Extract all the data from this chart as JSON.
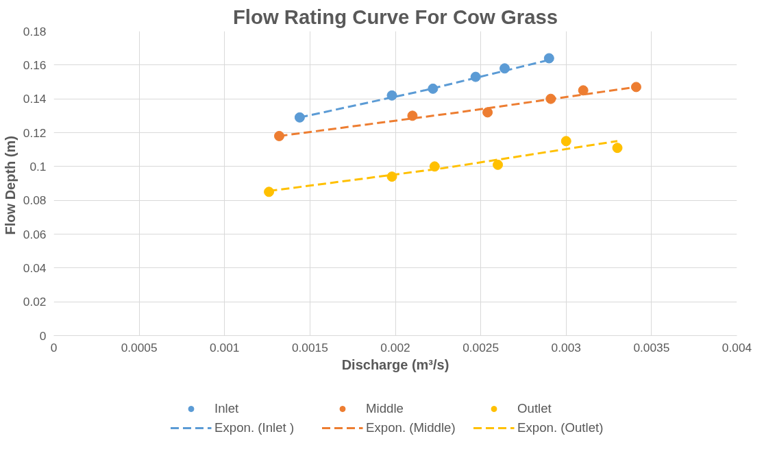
{
  "chart_data": {
    "type": "scatter",
    "title": "Flow Rating Curve For Cow Grass",
    "xlabel": "Discharge (m³/s)",
    "ylabel": "Flow Depth  (m)",
    "xlim": [
      0,
      0.004
    ],
    "xticks": [
      0,
      0.0005,
      0.001,
      0.0015,
      0.002,
      0.0025,
      0.003,
      0.0035,
      0.004
    ],
    "ylim": [
      0,
      0.18
    ],
    "yticks": [
      0,
      0.02,
      0.04,
      0.06,
      0.08,
      0.1,
      0.12,
      0.14,
      0.16,
      0.18
    ],
    "grid": true,
    "legend": "bottom",
    "marker": "circle",
    "series": [
      {
        "name": "Inlet",
        "color": "#5b9bd5",
        "x": [
          0.00144,
          0.00198,
          0.00222,
          0.00247,
          0.00264,
          0.0029
        ],
        "values": [
          0.129,
          0.142,
          0.146,
          0.153,
          0.158,
          0.164
        ]
      },
      {
        "name": "Middle",
        "color": "#ed7d31",
        "x": [
          0.00132,
          0.0021,
          0.00254,
          0.00291,
          0.0031,
          0.00341
        ],
        "values": [
          0.118,
          0.13,
          0.132,
          0.14,
          0.145,
          0.147
        ]
      },
      {
        "name": "Outlet",
        "color": "#ffc000",
        "x": [
          0.00126,
          0.00198,
          0.00223,
          0.0026,
          0.003,
          0.0033
        ],
        "values": [
          0.085,
          0.094,
          0.1,
          0.101,
          0.115,
          0.111
        ]
      },
      {
        "name": "Expon. (Inlet )",
        "type": "line",
        "line_style": "dashed",
        "marker": "none",
        "color": "#5b9bd5",
        "x": [
          0.00144,
          0.00217,
          0.0029
        ],
        "values": [
          0.129,
          0.145,
          0.163
        ]
      },
      {
        "name": "Expon. (Middle)",
        "type": "line",
        "line_style": "dashed",
        "marker": "none",
        "color": "#ed7d31",
        "x": [
          0.00132,
          0.00237,
          0.00341
        ],
        "values": [
          0.118,
          0.132,
          0.147
        ]
      },
      {
        "name": "Expon. (Outlet)",
        "type": "line",
        "line_style": "dashed",
        "marker": "none",
        "color": "#ffc000",
        "x": [
          0.00126,
          0.00228,
          0.0033
        ],
        "values": [
          0.0855,
          0.099,
          0.115
        ]
      }
    ]
  }
}
